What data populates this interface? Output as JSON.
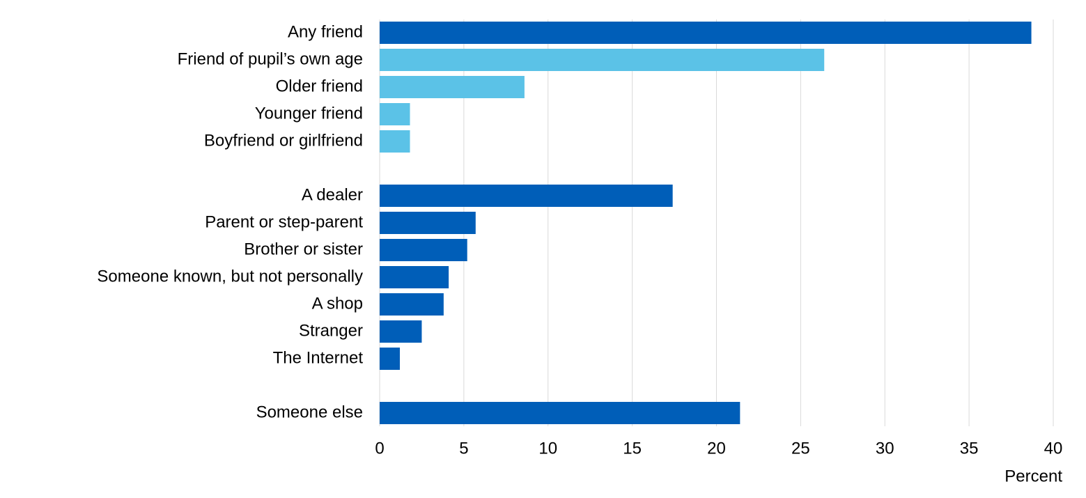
{
  "chart_data": {
    "type": "hbar",
    "categories": [
      "Any friend",
      "Friend of pupil’s own age",
      "Older friend",
      "Younger friend",
      "Boyfriend or girlfriend",
      null,
      "A dealer",
      "Parent or step-parent",
      "Brother or sister",
      "Someone known, but not personally",
      "A shop",
      "Stranger",
      "The Internet",
      null,
      "Someone else"
    ],
    "values": [
      38.7,
      26.4,
      8.6,
      1.8,
      1.8,
      null,
      17.4,
      5.7,
      5.2,
      4.1,
      3.8,
      2.5,
      1.2,
      null,
      21.4
    ],
    "colors": [
      "#005eb8",
      "#5bc2e7",
      "#5bc2e7",
      "#5bc2e7",
      "#5bc2e7",
      null,
      "#005eb8",
      "#005eb8",
      "#005eb8",
      "#005eb8",
      "#005eb8",
      "#005eb8",
      "#005eb8",
      null,
      "#005eb8"
    ],
    "xlabel": "Percent",
    "xlim": [
      0,
      40
    ],
    "xticks": [
      0,
      5,
      10,
      15,
      20,
      25,
      30,
      35,
      40
    ],
    "grid": true
  }
}
